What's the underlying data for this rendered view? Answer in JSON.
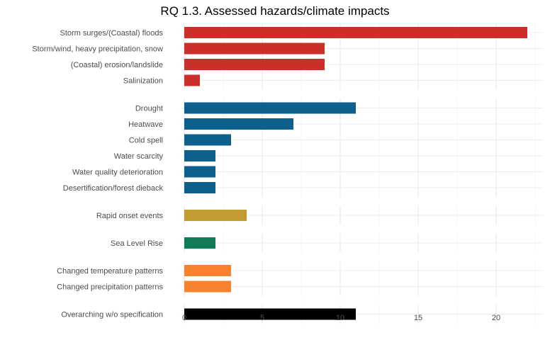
{
  "chart_data": {
    "type": "bar",
    "orientation": "horizontal",
    "title": "RQ 1.3. Assessed hazards/climate impacts",
    "xlabel": "",
    "ylabel": "",
    "xlim": [
      0,
      22.5
    ],
    "x_ticks": [
      0,
      5,
      10,
      15,
      20
    ],
    "grid": true,
    "legend": "none",
    "groups": [
      {
        "color": "#cc2f2a",
        "items": [
          {
            "label": "Storm surges/(Coastal) floods",
            "value": 22
          },
          {
            "label": "Storm/wind, heavy precipitation, snow",
            "value": 9
          },
          {
            "label": "(Coastal) erosion/landslide",
            "value": 9
          },
          {
            "label": "Salinization",
            "value": 1
          }
        ]
      },
      {
        "color": "#0d5f8c",
        "items": [
          {
            "label": "Drought",
            "value": 11
          },
          {
            "label": "Heatwave",
            "value": 7
          },
          {
            "label": "Cold spell",
            "value": 3
          },
          {
            "label": "Water scarcity",
            "value": 2
          },
          {
            "label": "Water quality deterioration",
            "value": 2
          },
          {
            "label": "Desertification/forest dieback",
            "value": 2
          }
        ]
      },
      {
        "color": "#c29b32",
        "items": [
          {
            "label": "Rapid onset events",
            "value": 4
          }
        ]
      },
      {
        "color": "#0f7d55",
        "items": [
          {
            "label": "Sea Level Rise",
            "value": 2
          }
        ]
      },
      {
        "color": "#f8822e",
        "items": [
          {
            "label": "Changed temperature patterns",
            "value": 3
          },
          {
            "label": "Changed precipitation patterns",
            "value": 3
          }
        ]
      },
      {
        "color": "#000000",
        "items": [
          {
            "label": "Overarching w/o specification",
            "value": 11
          }
        ]
      }
    ]
  }
}
